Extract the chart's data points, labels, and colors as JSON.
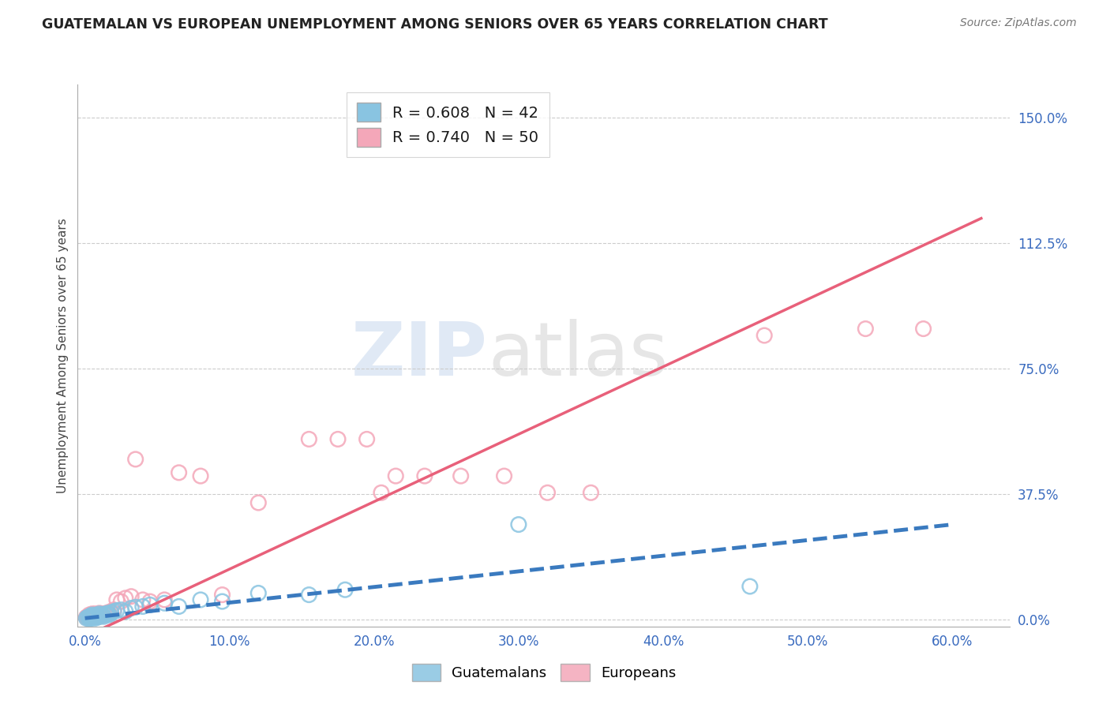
{
  "title": "GUATEMALAN VS EUROPEAN UNEMPLOYMENT AMONG SENIORS OVER 65 YEARS CORRELATION CHART",
  "source": "Source: ZipAtlas.com",
  "ylabel": "Unemployment Among Seniors over 65 years",
  "xlabel_ticks": [
    "0.0%",
    "10.0%",
    "20.0%",
    "30.0%",
    "40.0%",
    "50.0%",
    "60.0%"
  ],
  "ytick_labels": [
    "0.0%",
    "37.5%",
    "75.0%",
    "112.5%",
    "150.0%"
  ],
  "ytick_values": [
    0.0,
    0.375,
    0.75,
    1.125,
    1.5
  ],
  "xtick_values": [
    0.0,
    0.1,
    0.2,
    0.3,
    0.4,
    0.5,
    0.6
  ],
  "xlim": [
    -0.005,
    0.64
  ],
  "ylim": [
    -0.02,
    1.6
  ],
  "guatemalan_R": 0.608,
  "guatemalan_N": 42,
  "european_R": 0.74,
  "european_N": 50,
  "guatemalan_color": "#89c4e1",
  "european_color": "#f4a7b9",
  "guatemalan_line_color": "#3a7abf",
  "european_line_color": "#e8607a",
  "guatemalan_line_x": [
    0.0,
    0.6
  ],
  "guatemalan_line_y": [
    0.005,
    0.285
  ],
  "european_line_x": [
    0.0,
    0.62
  ],
  "european_line_y": [
    -0.05,
    1.2
  ],
  "guatemalan_x": [
    0.001,
    0.002,
    0.003,
    0.003,
    0.004,
    0.004,
    0.005,
    0.005,
    0.006,
    0.006,
    0.007,
    0.007,
    0.008,
    0.008,
    0.009,
    0.01,
    0.01,
    0.011,
    0.012,
    0.013,
    0.014,
    0.015,
    0.016,
    0.017,
    0.018,
    0.02,
    0.022,
    0.025,
    0.028,
    0.032,
    0.035,
    0.04,
    0.045,
    0.055,
    0.065,
    0.08,
    0.095,
    0.12,
    0.155,
    0.18,
    0.3,
    0.46
  ],
  "guatemalan_y": [
    0.005,
    0.008,
    0.003,
    0.01,
    0.005,
    0.012,
    0.006,
    0.015,
    0.008,
    0.01,
    0.005,
    0.012,
    0.01,
    0.015,
    0.008,
    0.01,
    0.018,
    0.012,
    0.015,
    0.01,
    0.018,
    0.015,
    0.02,
    0.015,
    0.022,
    0.025,
    0.028,
    0.03,
    0.025,
    0.035,
    0.038,
    0.04,
    0.045,
    0.05,
    0.04,
    0.06,
    0.055,
    0.08,
    0.075,
    0.09,
    0.285,
    0.1
  ],
  "european_x": [
    0.001,
    0.002,
    0.003,
    0.003,
    0.004,
    0.005,
    0.005,
    0.006,
    0.006,
    0.007,
    0.007,
    0.008,
    0.008,
    0.009,
    0.01,
    0.01,
    0.011,
    0.012,
    0.013,
    0.014,
    0.015,
    0.016,
    0.017,
    0.018,
    0.02,
    0.022,
    0.025,
    0.028,
    0.032,
    0.035,
    0.04,
    0.045,
    0.055,
    0.065,
    0.08,
    0.095,
    0.12,
    0.155,
    0.175,
    0.195,
    0.205,
    0.215,
    0.235,
    0.26,
    0.29,
    0.32,
    0.35,
    0.47,
    0.54,
    0.58
  ],
  "european_y": [
    0.008,
    0.005,
    0.008,
    0.015,
    0.01,
    0.008,
    0.018,
    0.01,
    0.015,
    0.008,
    0.018,
    0.01,
    0.015,
    0.012,
    0.015,
    0.02,
    0.018,
    0.012,
    0.018,
    0.015,
    0.02,
    0.022,
    0.018,
    0.025,
    0.03,
    0.06,
    0.055,
    0.065,
    0.07,
    0.48,
    0.06,
    0.055,
    0.06,
    0.44,
    0.43,
    0.075,
    0.35,
    0.54,
    0.54,
    0.54,
    0.38,
    0.43,
    0.43,
    0.43,
    0.43,
    0.38,
    0.38,
    0.85,
    0.87,
    0.87
  ],
  "watermark_zip": "ZIP",
  "watermark_atlas": "atlas",
  "background_color": "#ffffff",
  "grid_color": "#cccccc"
}
